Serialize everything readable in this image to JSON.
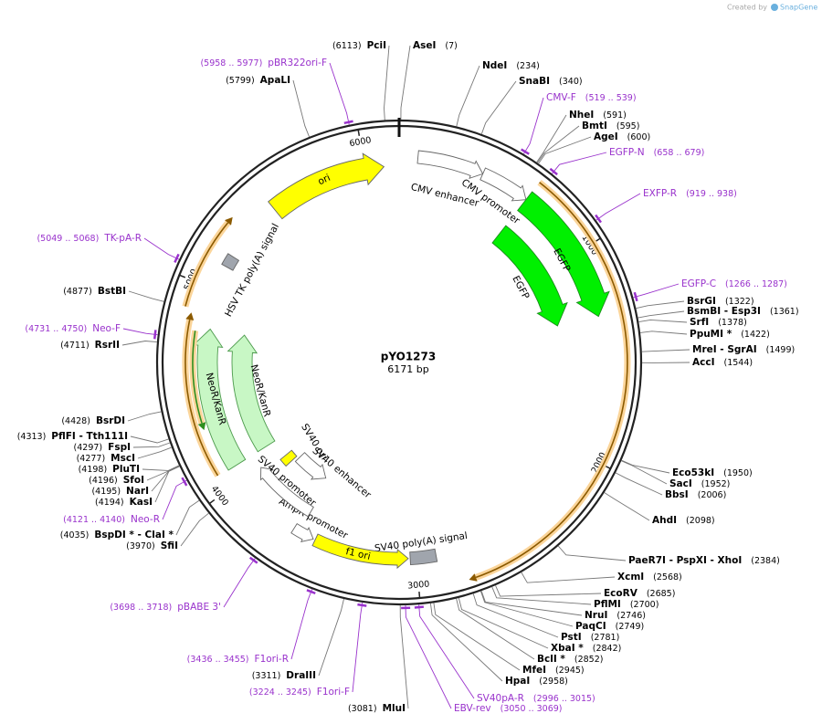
{
  "created_by": "Created by",
  "brand": "SnapGene",
  "plasmid": {
    "name": "pYO1273",
    "size_label": "6171 bp",
    "length": 6171
  },
  "scale_ticks": [
    1000,
    2000,
    3000,
    4000,
    5000,
    6000
  ],
  "features": [
    {
      "name": "CMV enhancer",
      "start": 90,
      "end": 410,
      "direction": 1,
      "color": "#ffffff"
    },
    {
      "name": "CMV promoter",
      "start": 410,
      "end": 650,
      "direction": 1,
      "color": "#ffffff"
    },
    {
      "name": "EGFP",
      "start": 650,
      "end": 1320,
      "direction": 1,
      "color": "#00f000"
    },
    {
      "name": "EGFP",
      "start": 650,
      "end": 1320,
      "direction": 1,
      "color": "#00f000"
    },
    {
      "start": 650,
      "end": 2780,
      "direction": 1,
      "color": "#8b5a00"
    },
    {
      "name": "SV40 poly(A) signal",
      "start": 2900,
      "end": 3030,
      "direction": 0,
      "color": "#a0a5ad"
    },
    {
      "name": "f1 ori",
      "start": 3040,
      "end": 3520,
      "direction": -1,
      "color": "#ffff00"
    },
    {
      "name": "AmpR promoter",
      "start": 3530,
      "end": 3640,
      "direction": -1,
      "color": "#ffffff"
    },
    {
      "name": "SV40 promoter",
      "start": 3610,
      "end": 3990,
      "direction": 1,
      "color": "#ffffff"
    },
    {
      "name": "SV40 enhancer",
      "start": 3640,
      "end": 3880,
      "direction": -1,
      "color": "#ffffff"
    },
    {
      "name": "SV40 ori",
      "start": 3900,
      "end": 3955,
      "direction": 0,
      "color": "#ffff00"
    },
    {
      "name": "NeoR/KanR",
      "start": 4075,
      "end": 4800,
      "direction": 1,
      "color": "#c8f7c5"
    },
    {
      "name": "NeoR/KanR",
      "start": 4075,
      "end": 4800,
      "direction": 1,
      "color": "#c8f7c5"
    },
    {
      "start": 4080,
      "end": 4860,
      "direction": 1,
      "color": "#8b5a00"
    },
    {
      "start": 4880,
      "end": 5333,
      "direction": 1,
      "color": "#8b5a00"
    },
    {
      "start": 4300,
      "end": 4780,
      "direction": -1,
      "color": "#2f8f1f"
    },
    {
      "name": "HSV TK poly(A) signal",
      "start": 5125,
      "end": 5185,
      "direction": 0,
      "color": "#a0a5ad"
    },
    {
      "name": "ori",
      "start": 5500,
      "end": 6095,
      "direction": 1,
      "color": "#ffff00"
    }
  ],
  "sites": [
    {
      "name": "PciI",
      "position": 6113,
      "label": "(6113)"
    },
    {
      "name": "AseI",
      "position": 7,
      "label": "(7)"
    },
    {
      "name": "NdeI",
      "position": 234,
      "label": "(234)"
    },
    {
      "name": "SnaBI",
      "position": 340,
      "label": "(340)"
    },
    {
      "name": "NheI",
      "position": 591,
      "label": "(591)"
    },
    {
      "name": "BmtI",
      "position": 595,
      "label": "(595)"
    },
    {
      "name": "AgeI",
      "position": 600,
      "label": "(600)"
    },
    {
      "name": "BsrGI",
      "position": 1322,
      "label": "(1322)"
    },
    {
      "name": "BsmBI  - Esp3I",
      "position": 1361,
      "label": "(1361)"
    },
    {
      "name": "SrfI",
      "position": 1378,
      "label": "(1378)"
    },
    {
      "name": "PpuMI *",
      "position": 1422,
      "label": "(1422)"
    },
    {
      "name": "MreI  - SgrAI",
      "position": 1499,
      "label": "(1499)"
    },
    {
      "name": "AccI",
      "position": 1544,
      "label": "(1544)"
    },
    {
      "name": "Eco53kI",
      "position": 1950,
      "label": "(1950)"
    },
    {
      "name": "SacI",
      "position": 1952,
      "label": "(1952)"
    },
    {
      "name": "BbsI",
      "position": 2006,
      "label": "(2006)"
    },
    {
      "name": "AhdI",
      "position": 2098,
      "label": "(2098)"
    },
    {
      "name": "PaeR7I  - PspXI  - XhoI",
      "position": 2384,
      "label": "(2384)"
    },
    {
      "name": "XcmI",
      "position": 2568,
      "label": "(2568)"
    },
    {
      "name": "EcoRV",
      "position": 2685,
      "label": "(2685)"
    },
    {
      "name": "PflMI",
      "position": 2700,
      "label": "(2700)"
    },
    {
      "name": "NruI",
      "position": 2746,
      "label": "(2746)"
    },
    {
      "name": "PaqCI",
      "position": 2749,
      "label": "(2749)"
    },
    {
      "name": "PstI",
      "position": 2781,
      "label": "(2781)"
    },
    {
      "name": "XbaI *",
      "position": 2842,
      "label": "(2842)"
    },
    {
      "name": "BclI *",
      "position": 2852,
      "label": "(2852)"
    },
    {
      "name": "MfeI",
      "position": 2945,
      "label": "(2945)"
    },
    {
      "name": "HpaI",
      "position": 2958,
      "label": "(2958)"
    },
    {
      "name": "MluI",
      "position": 3081,
      "label": "(3081)"
    },
    {
      "name": "DraIII",
      "position": 3311,
      "label": "(3311)"
    },
    {
      "name": "SfiI",
      "position": 3970,
      "label": "(3970)"
    },
    {
      "name": "BspDI *  - ClaI *",
      "position": 4035,
      "label": "(4035)"
    },
    {
      "name": "KasI",
      "position": 4194,
      "label": "(4194)"
    },
    {
      "name": "NarI",
      "position": 4195,
      "label": "(4195)"
    },
    {
      "name": "SfoI",
      "position": 4196,
      "label": "(4196)"
    },
    {
      "name": "PluTI",
      "position": 4198,
      "label": "(4198)"
    },
    {
      "name": "MscI",
      "position": 4277,
      "label": "(4277)"
    },
    {
      "name": "FspI",
      "position": 4297,
      "label": "(4297)"
    },
    {
      "name": "PflFI  - Tth111I",
      "position": 4313,
      "label": "(4313)"
    },
    {
      "name": "BsrDI",
      "position": 4428,
      "label": "(4428)"
    },
    {
      "name": "RsrII",
      "position": 4711,
      "label": "(4711)"
    },
    {
      "name": "BstBI",
      "position": 4877,
      "label": "(4877)"
    },
    {
      "name": "ApaLI",
      "position": 5799,
      "label": "(5799)"
    }
  ],
  "primers": [
    {
      "name": "pBR322ori-F",
      "start": 5958,
      "end": 5977,
      "label": "(5958 .. 5977)"
    },
    {
      "name": "CMV-F",
      "start": 519,
      "end": 539,
      "label": "(519 .. 539)"
    },
    {
      "name": "EGFP-N",
      "start": 658,
      "end": 679,
      "label": "(658 .. 679)"
    },
    {
      "name": "EXFP-R",
      "start": 919,
      "end": 938,
      "label": "(919 .. 938)"
    },
    {
      "name": "EGFP-C",
      "start": 1266,
      "end": 1287,
      "label": "(1266 .. 1287)"
    },
    {
      "name": "SV40pA-R",
      "start": 2996,
      "end": 3015,
      "label": "(2996 .. 3015)"
    },
    {
      "name": "EBV-rev",
      "start": 3050,
      "end": 3069,
      "label": "(3050 .. 3069)"
    },
    {
      "name": "F1ori-F",
      "start": 3224,
      "end": 3245,
      "label": "(3224 .. 3245)"
    },
    {
      "name": "F1ori-R",
      "start": 3436,
      "end": 3455,
      "label": "(3436 .. 3455)"
    },
    {
      "name": "pBABE 3'",
      "start": 3698,
      "end": 3718,
      "label": "(3698 .. 3718)"
    },
    {
      "name": "Neo-R",
      "start": 4121,
      "end": 4140,
      "label": "(4121 .. 4140)"
    },
    {
      "name": "Neo-F",
      "start": 4731,
      "end": 4750,
      "label": "(4731 .. 4750)"
    },
    {
      "name": "TK-pA-R",
      "start": 5049,
      "end": 5068,
      "label": "(5049 .. 5068)"
    }
  ]
}
